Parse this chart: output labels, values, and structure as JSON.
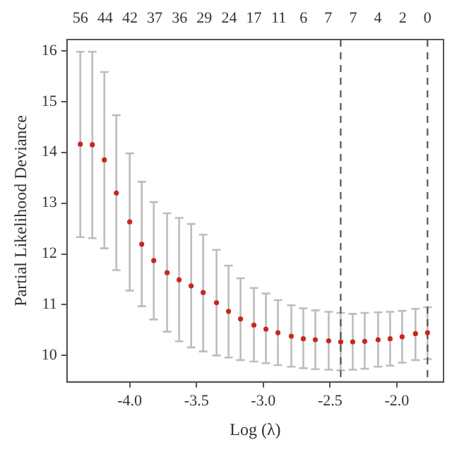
{
  "chart_data": {
    "type": "scatter",
    "xlabel": "Log (λ)",
    "ylabel": "Partial Likelihood Deviance",
    "marker": "circle",
    "x": [
      -4.37,
      -4.28,
      -4.19,
      -4.1,
      -4.0,
      -3.91,
      -3.82,
      -3.72,
      -3.63,
      -3.54,
      -3.45,
      -3.35,
      -3.26,
      -3.17,
      -3.07,
      -2.98,
      -2.89,
      -2.79,
      -2.7,
      -2.61,
      -2.51,
      -2.42,
      -2.33,
      -2.24,
      -2.14,
      -2.05,
      -1.96,
      -1.86,
      -1.77
    ],
    "series": [
      {
        "color": "#c8281e",
        "values": [
          14.16,
          14.15,
          13.85,
          13.2,
          12.63,
          12.19,
          11.87,
          11.63,
          11.49,
          11.37,
          11.24,
          11.04,
          10.87,
          10.72,
          10.6,
          10.52,
          10.45,
          10.38,
          10.33,
          10.31,
          10.29,
          10.27,
          10.27,
          10.28,
          10.31,
          10.33,
          10.37,
          10.43,
          10.45
        ],
        "errors": [
          [
            12.33,
            15.98
          ],
          [
            12.31,
            15.98
          ],
          [
            12.11,
            15.58
          ],
          [
            11.68,
            14.73
          ],
          [
            11.28,
            13.98
          ],
          [
            10.97,
            13.42
          ],
          [
            10.71,
            13.02
          ],
          [
            10.47,
            12.8
          ],
          [
            10.28,
            12.71
          ],
          [
            10.16,
            12.59
          ],
          [
            10.08,
            12.38
          ],
          [
            10.0,
            12.08
          ],
          [
            9.96,
            11.77
          ],
          [
            9.91,
            11.52
          ],
          [
            9.88,
            11.33
          ],
          [
            9.85,
            11.22
          ],
          [
            9.81,
            11.09
          ],
          [
            9.78,
            10.99
          ],
          [
            9.75,
            10.93
          ],
          [
            9.73,
            10.89
          ],
          [
            9.72,
            10.86
          ],
          [
            9.71,
            10.84
          ],
          [
            9.72,
            10.82
          ],
          [
            9.74,
            10.84
          ],
          [
            9.78,
            10.85
          ],
          [
            9.8,
            10.86
          ],
          [
            9.86,
            10.88
          ],
          [
            9.91,
            10.92
          ],
          [
            9.93,
            10.95
          ]
        ]
      }
    ],
    "xlim": [
      -4.47,
      -1.65
    ],
    "xticks": [
      {
        "value": -4,
        "label": "-4.0"
      },
      {
        "value": -3.5,
        "label": "-3.5"
      },
      {
        "value": -3,
        "label": "-3.0"
      },
      {
        "value": -2.5,
        "label": "-2.5"
      },
      {
        "value": -2,
        "label": "-2.0"
      }
    ],
    "annotations": [
      "56",
      "44",
      "42",
      "37",
      "36",
      "29",
      "24",
      "17",
      "11",
      "6",
      "7",
      "7",
      "4",
      "2",
      "0"
    ],
    "ylim": [
      9.48,
      16.22
    ],
    "yticks": [
      10,
      11,
      12,
      13,
      14,
      15,
      16
    ],
    "ref_lines": [
      {
        "axis": "x",
        "value": -2.42,
        "color": "#555555",
        "line_style": "dashed"
      },
      {
        "axis": "x",
        "value": -1.77,
        "color": "#555555",
        "line_style": "dashed"
      }
    ]
  }
}
